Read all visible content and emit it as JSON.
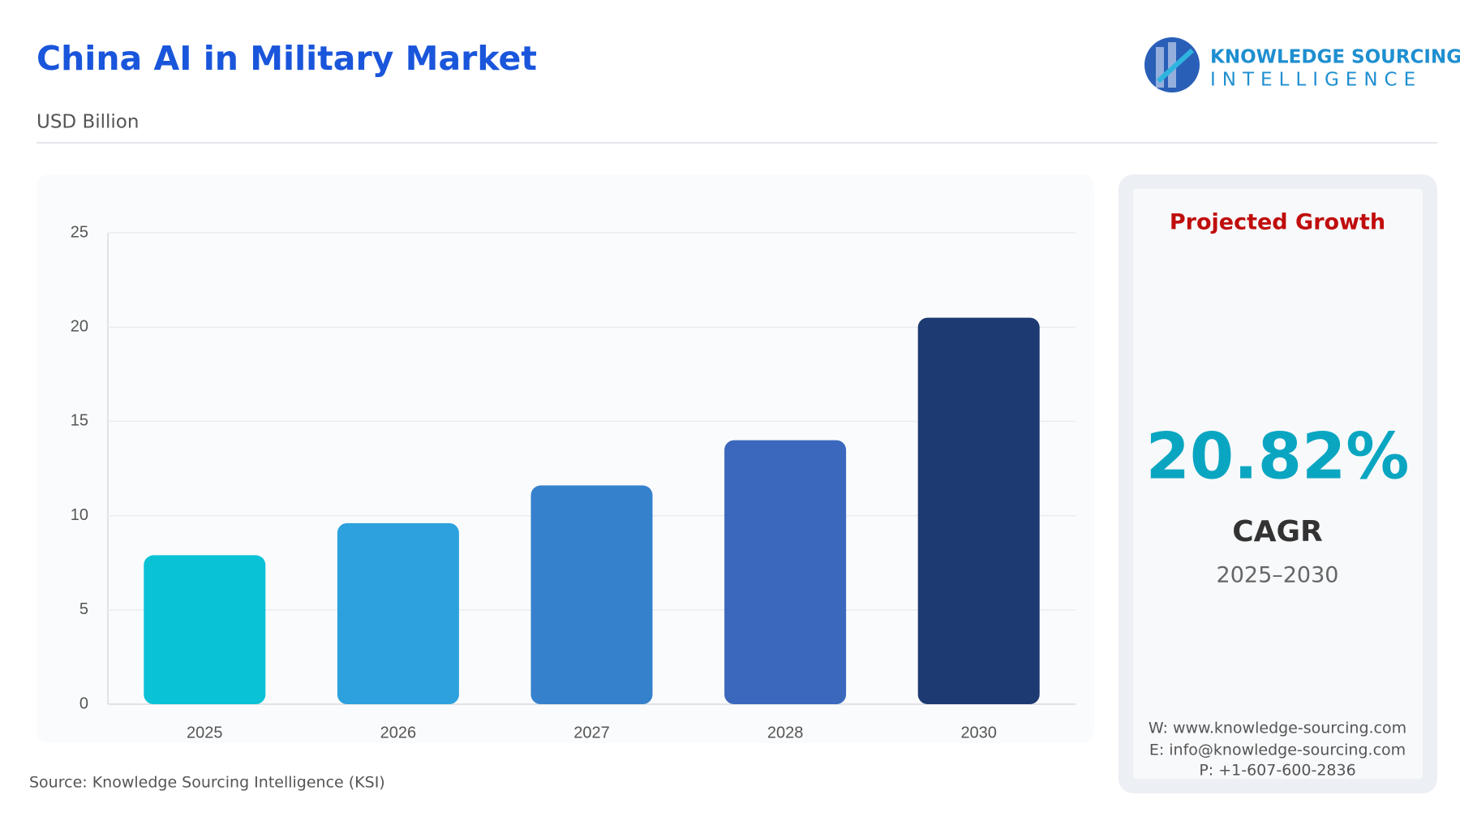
{
  "chart_data": {
    "type": "bar",
    "title": "China AI in Military Market",
    "subtitle": "USD Billion",
    "categories": [
      "2025",
      "2026",
      "2027",
      "2028",
      "2030"
    ],
    "values": [
      7.9,
      9.6,
      11.6,
      14.0,
      20.5
    ],
    "colors": [
      "#09c2d6",
      "#2ca1dd",
      "#3581cc",
      "#3b68bd",
      "#1d3a72"
    ],
    "ylim": [
      0,
      25
    ],
    "yticks": [
      0,
      5,
      10,
      15,
      20,
      25
    ],
    "grid": true,
    "source": "Source: Knowledge Sourcing Intelligence (KSI)"
  },
  "logo": {
    "line1": "KNOWLEDGE SOURCING",
    "line2": "INTELLIGENCE"
  },
  "growth_panel": {
    "heading": "Projected Growth",
    "value": "20.82%",
    "label": "CAGR",
    "period": "2025–2030",
    "contacts": [
      "W: www.knowledge-sourcing.com",
      "E: info@knowledge-sourcing.com",
      "P: +1-607-600-2836"
    ]
  }
}
